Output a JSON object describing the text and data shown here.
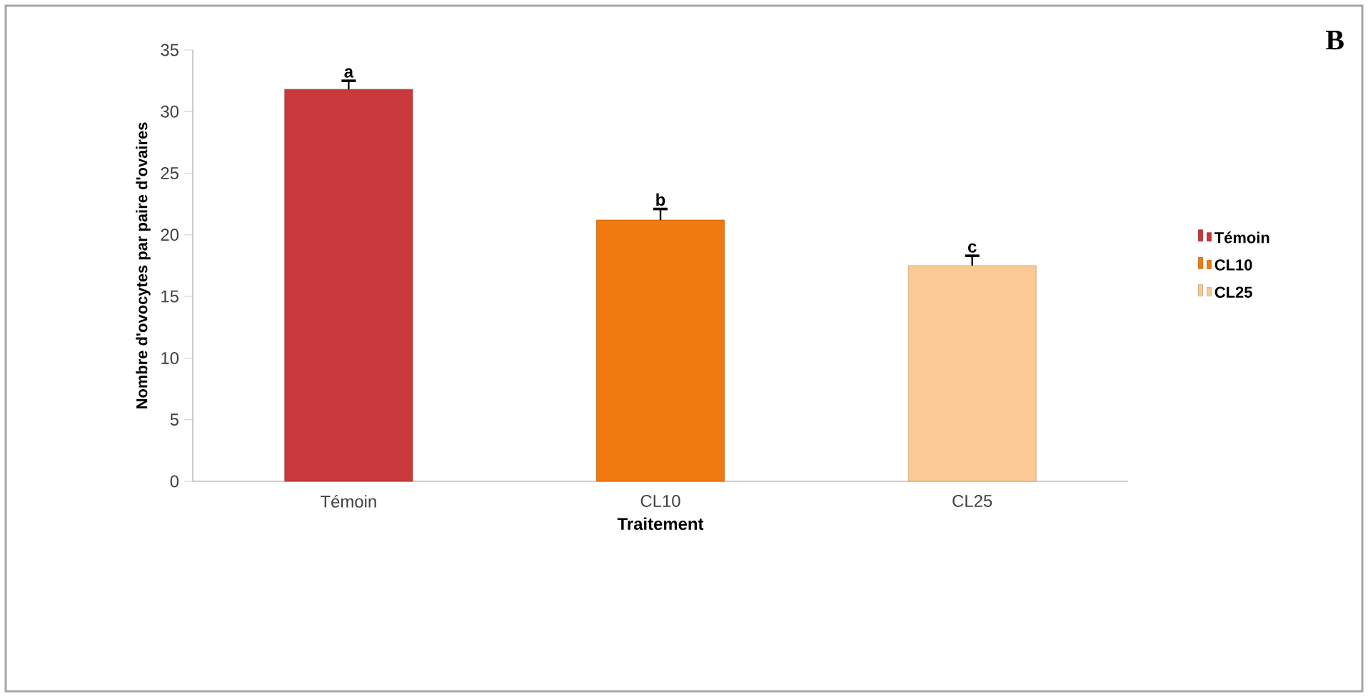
{
  "chart_data": {
    "type": "bar",
    "xlabel": "Traitement",
    "ylabel": "Nombre d'ovocytes par paire d'ovaires",
    "categories": [
      "Témoin",
      "CL10",
      "CL25"
    ],
    "series": [
      {
        "name": "Témoin",
        "color": "#c9383a",
        "values": [
          31.8,
          null,
          null
        ],
        "errors": [
          [
            31.8,
            32.5
          ],
          null,
          null
        ]
      },
      {
        "name": "CL10",
        "color": "#f07a10",
        "values": [
          null,
          21.2,
          null
        ],
        "errors": [
          null,
          [
            21.2,
            22.1
          ],
          null
        ]
      },
      {
        "name": "CL25",
        "color": "#fbc994",
        "values": [
          null,
          null,
          17.5
        ],
        "errors": [
          null,
          null,
          [
            17.5,
            18.3
          ]
        ]
      }
    ],
    "ylim": [
      0,
      35
    ],
    "yticks": [
      0,
      5,
      10,
      15,
      20,
      25,
      30,
      35
    ],
    "grid": false,
    "legend": "right",
    "annotations": [
      {
        "text": "a",
        "x": "Témoin",
        "y": 32.5
      },
      {
        "text": "b",
        "x": "CL10",
        "y": 22.1
      },
      {
        "text": "c",
        "x": "CL25",
        "y": 18.3
      },
      "B"
    ]
  }
}
